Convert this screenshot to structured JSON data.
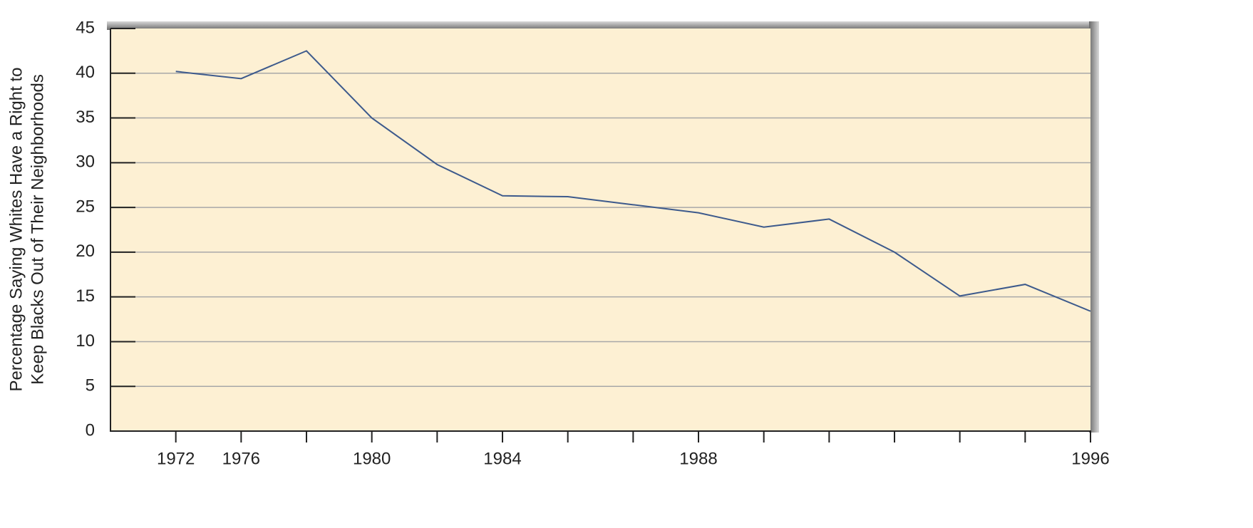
{
  "chart_data": {
    "type": "line",
    "y_label": [
      "Percentage Saying Whites Have a Right to",
      "Keep Blacks Out of Their Neighborhoods"
    ],
    "categories": [
      "1972",
      "1976",
      null,
      "1980",
      null,
      "1984",
      null,
      null,
      "1988",
      null,
      null,
      null,
      null,
      null,
      "1996"
    ],
    "values": [
      40.2,
      39.4,
      42.5,
      35.0,
      29.8,
      26.3,
      26.2,
      25.3,
      24.4,
      22.8,
      23.7,
      20.0,
      15.1,
      16.4,
      13.4
    ],
    "color": "#3d5a8c",
    "ylim": [
      0,
      45
    ],
    "yticks": [
      0,
      5,
      10,
      15,
      20,
      25,
      30,
      35,
      40,
      45
    ],
    "grid": true
  }
}
